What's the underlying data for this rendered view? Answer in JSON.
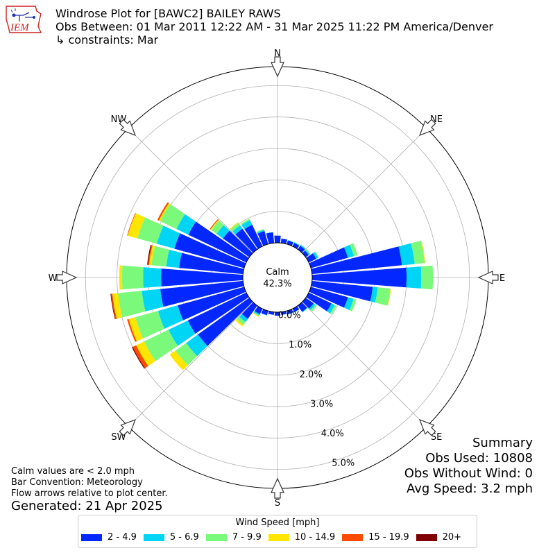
{
  "header": {
    "title": "Windrose Plot for [BAWC2] BAILEY RAWS",
    "period": "Obs Between: 01 Mar 2011 12:22 AM - 31 Mar 2025 11:22 PM America/Denver",
    "constraints": "↳ constraints: Mar"
  },
  "logo_text": "IEM",
  "notes": {
    "calm": "Calm values are < 2.0 mph",
    "convention": "Bar Convention: Meteorology",
    "flow": "Flow arrows relative to plot center.",
    "generated": "Generated: 21 Apr 2025"
  },
  "summary": {
    "title": "Summary",
    "obs_used": "Obs Used: 10808",
    "obs_without_wind": "Obs Without Wind: 0",
    "avg_speed": "Avg Speed: 3.2 mph"
  },
  "legend": {
    "title": "Wind Speed [mph]",
    "items": [
      {
        "label": "2 - 4.9",
        "color": "#0328ff"
      },
      {
        "label": "5 - 6.9",
        "color": "#00d5f5"
      },
      {
        "label": "7 - 9.9",
        "color": "#7bf97b"
      },
      {
        "label": "10 - 14.9",
        "color": "#ffe600"
      },
      {
        "label": "15 - 19.9",
        "color": "#ff4a00"
      },
      {
        "label": "20+",
        "color": "#800000"
      }
    ]
  },
  "chart_data": {
    "type": "windrose",
    "calm_label": "Calm",
    "calm_value": "42.3%",
    "radial_ticks": [
      "0.0%",
      "1.0%",
      "2.0%",
      "3.0%",
      "4.0%",
      "5.0%"
    ],
    "rmax": 5.6,
    "directions": [
      "N",
      "NE",
      "E",
      "SE",
      "S",
      "SW",
      "W",
      "NW"
    ],
    "speed_bins": [
      "2 - 4.9",
      "5 - 6.9",
      "7 - 9.9",
      "10 - 14.9",
      "15 - 19.9",
      "20+"
    ],
    "bin_colors": [
      "#0328ff",
      "#00d5f5",
      "#7bf97b",
      "#ffe600",
      "#ff4a00",
      "#800000"
    ],
    "sectors": [
      {
        "dir": 0,
        "values": [
          0.23,
          0,
          0,
          0,
          0,
          0
        ]
      },
      {
        "dir": 10,
        "values": [
          0.14,
          0,
          0,
          0,
          0,
          0
        ]
      },
      {
        "dir": 20,
        "values": [
          0.12,
          0.01,
          0.01,
          0,
          0,
          0
        ]
      },
      {
        "dir": 30,
        "values": [
          0.12,
          0.02,
          0.01,
          0,
          0,
          0
        ]
      },
      {
        "dir": 40,
        "values": [
          0.14,
          0.03,
          0.02,
          0,
          0,
          0
        ]
      },
      {
        "dir": 50,
        "values": [
          0.12,
          0.04,
          0.03,
          0,
          0,
          0
        ]
      },
      {
        "dir": 60,
        "values": [
          0.26,
          0.07,
          0.03,
          0,
          0,
          0
        ]
      },
      {
        "dir": 70,
        "values": [
          1.22,
          0.2,
          0.12,
          0,
          0,
          0
        ]
      },
      {
        "dir": 80,
        "values": [
          2.87,
          0.41,
          0.32,
          0.02,
          0,
          0
        ]
      },
      {
        "dir": 90,
        "values": [
          3.0,
          0.47,
          0.37,
          0,
          0,
          0
        ]
      },
      {
        "dir": 100,
        "values": [
          1.94,
          0.16,
          0.4,
          0.02,
          0,
          0
        ]
      },
      {
        "dir": 110,
        "values": [
          1.22,
          0.19,
          0.09,
          0,
          0,
          0
        ]
      },
      {
        "dir": 120,
        "values": [
          0.8,
          0.12,
          0.06,
          0,
          0,
          0
        ]
      },
      {
        "dir": 130,
        "values": [
          0.31,
          0.07,
          0.06,
          0,
          0,
          0
        ]
      },
      {
        "dir": 140,
        "values": [
          0.24,
          0.02,
          0.01,
          0,
          0,
          0
        ]
      },
      {
        "dir": 150,
        "values": [
          0.12,
          0.01,
          0,
          0,
          0,
          0
        ]
      },
      {
        "dir": 160,
        "values": [
          0.11,
          0.01,
          0,
          0,
          0,
          0
        ]
      },
      {
        "dir": 170,
        "values": [
          0.09,
          0,
          0,
          0,
          0,
          0
        ]
      },
      {
        "dir": 180,
        "values": [
          0.11,
          0,
          0,
          0,
          0,
          0
        ]
      },
      {
        "dir": 190,
        "values": [
          0.09,
          0,
          0,
          0,
          0,
          0
        ]
      },
      {
        "dir": 200,
        "values": [
          0.14,
          0.01,
          0,
          0,
          0,
          0
        ]
      },
      {
        "dir": 210,
        "values": [
          0.19,
          0.04,
          0.03,
          0.02,
          0,
          0
        ]
      },
      {
        "dir": 220,
        "values": [
          0.52,
          0.12,
          0.11,
          0.06,
          0,
          0
        ]
      },
      {
        "dir": 230,
        "values": [
          2.01,
          0.46,
          0.42,
          0.22,
          0,
          0
        ]
      },
      {
        "dir": 240,
        "values": [
          2.06,
          0.68,
          0.86,
          0.28,
          0.12,
          0.03
        ]
      },
      {
        "dir": 250,
        "values": [
          2.19,
          0.65,
          0.75,
          0.22,
          0.05,
          0
        ]
      },
      {
        "dir": 260,
        "values": [
          2.64,
          0.59,
          0.76,
          0.18,
          0.04,
          0.02
        ]
      },
      {
        "dir": 270,
        "values": [
          2.6,
          0.57,
          0.67,
          0.09,
          0,
          0
        ]
      },
      {
        "dir": 280,
        "values": [
          2.04,
          0.41,
          0.47,
          0.08,
          0.03,
          0.03
        ]
      },
      {
        "dir": 290,
        "values": [
          2.3,
          0.58,
          0.64,
          0.32,
          0.02,
          0
        ]
      },
      {
        "dir": 300,
        "values": [
          2.04,
          0.42,
          0.57,
          0.05,
          0.05,
          0
        ]
      },
      {
        "dir": 310,
        "values": [
          1.03,
          0.25,
          0.21,
          0.03,
          0.03,
          0
        ]
      },
      {
        "dir": 320,
        "values": [
          0.81,
          0.13,
          0.09,
          0.03,
          0,
          0
        ]
      },
      {
        "dir": 330,
        "values": [
          0.76,
          0.16,
          0.05,
          0,
          0,
          0
        ]
      },
      {
        "dir": 340,
        "values": [
          0.43,
          0.04,
          0.03,
          0,
          0,
          0
        ]
      },
      {
        "dir": 350,
        "values": [
          0.34,
          0.01,
          0,
          0,
          0,
          0
        ]
      }
    ]
  }
}
